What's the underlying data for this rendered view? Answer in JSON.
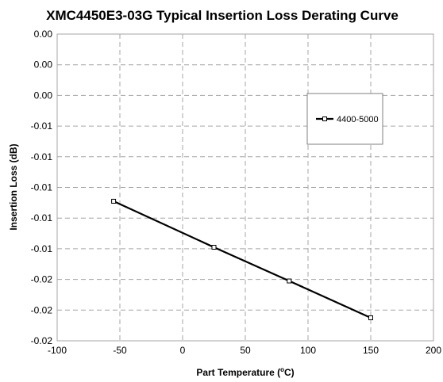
{
  "chart_data": {
    "type": "line",
    "title": "XMC4450E3-03G Typical Insertion Loss Derating Curve",
    "xlabel": "Part Temperature (",
    "xlabel_superscript": "o",
    "xlabel_tail": "C)",
    "ylabel": "Insertion Loss (dB)",
    "xlim": [
      -100,
      200
    ],
    "xticks": [
      -100,
      -50,
      0,
      50,
      100,
      150,
      200
    ],
    "xtick_labels": [
      "-100",
      "-50",
      "0",
      "50",
      "100",
      "150",
      "200"
    ],
    "ylim": [
      -0.02,
      0.0
    ],
    "ytick_labels": [
      "0.00",
      "0.00",
      "0.00",
      "-0.01",
      "-0.01",
      "-0.01",
      "-0.01",
      "-0.01",
      "-0.02",
      "-0.02",
      "-0.02"
    ],
    "grid": true,
    "legend_position": "top-right",
    "series": [
      {
        "name": "4400-5000",
        "color": "#000000",
        "marker": "square",
        "x": [
          -55,
          25,
          85,
          150
        ],
        "y": [
          -0.0109,
          -0.0139,
          -0.0161,
          -0.0185
        ]
      }
    ]
  }
}
